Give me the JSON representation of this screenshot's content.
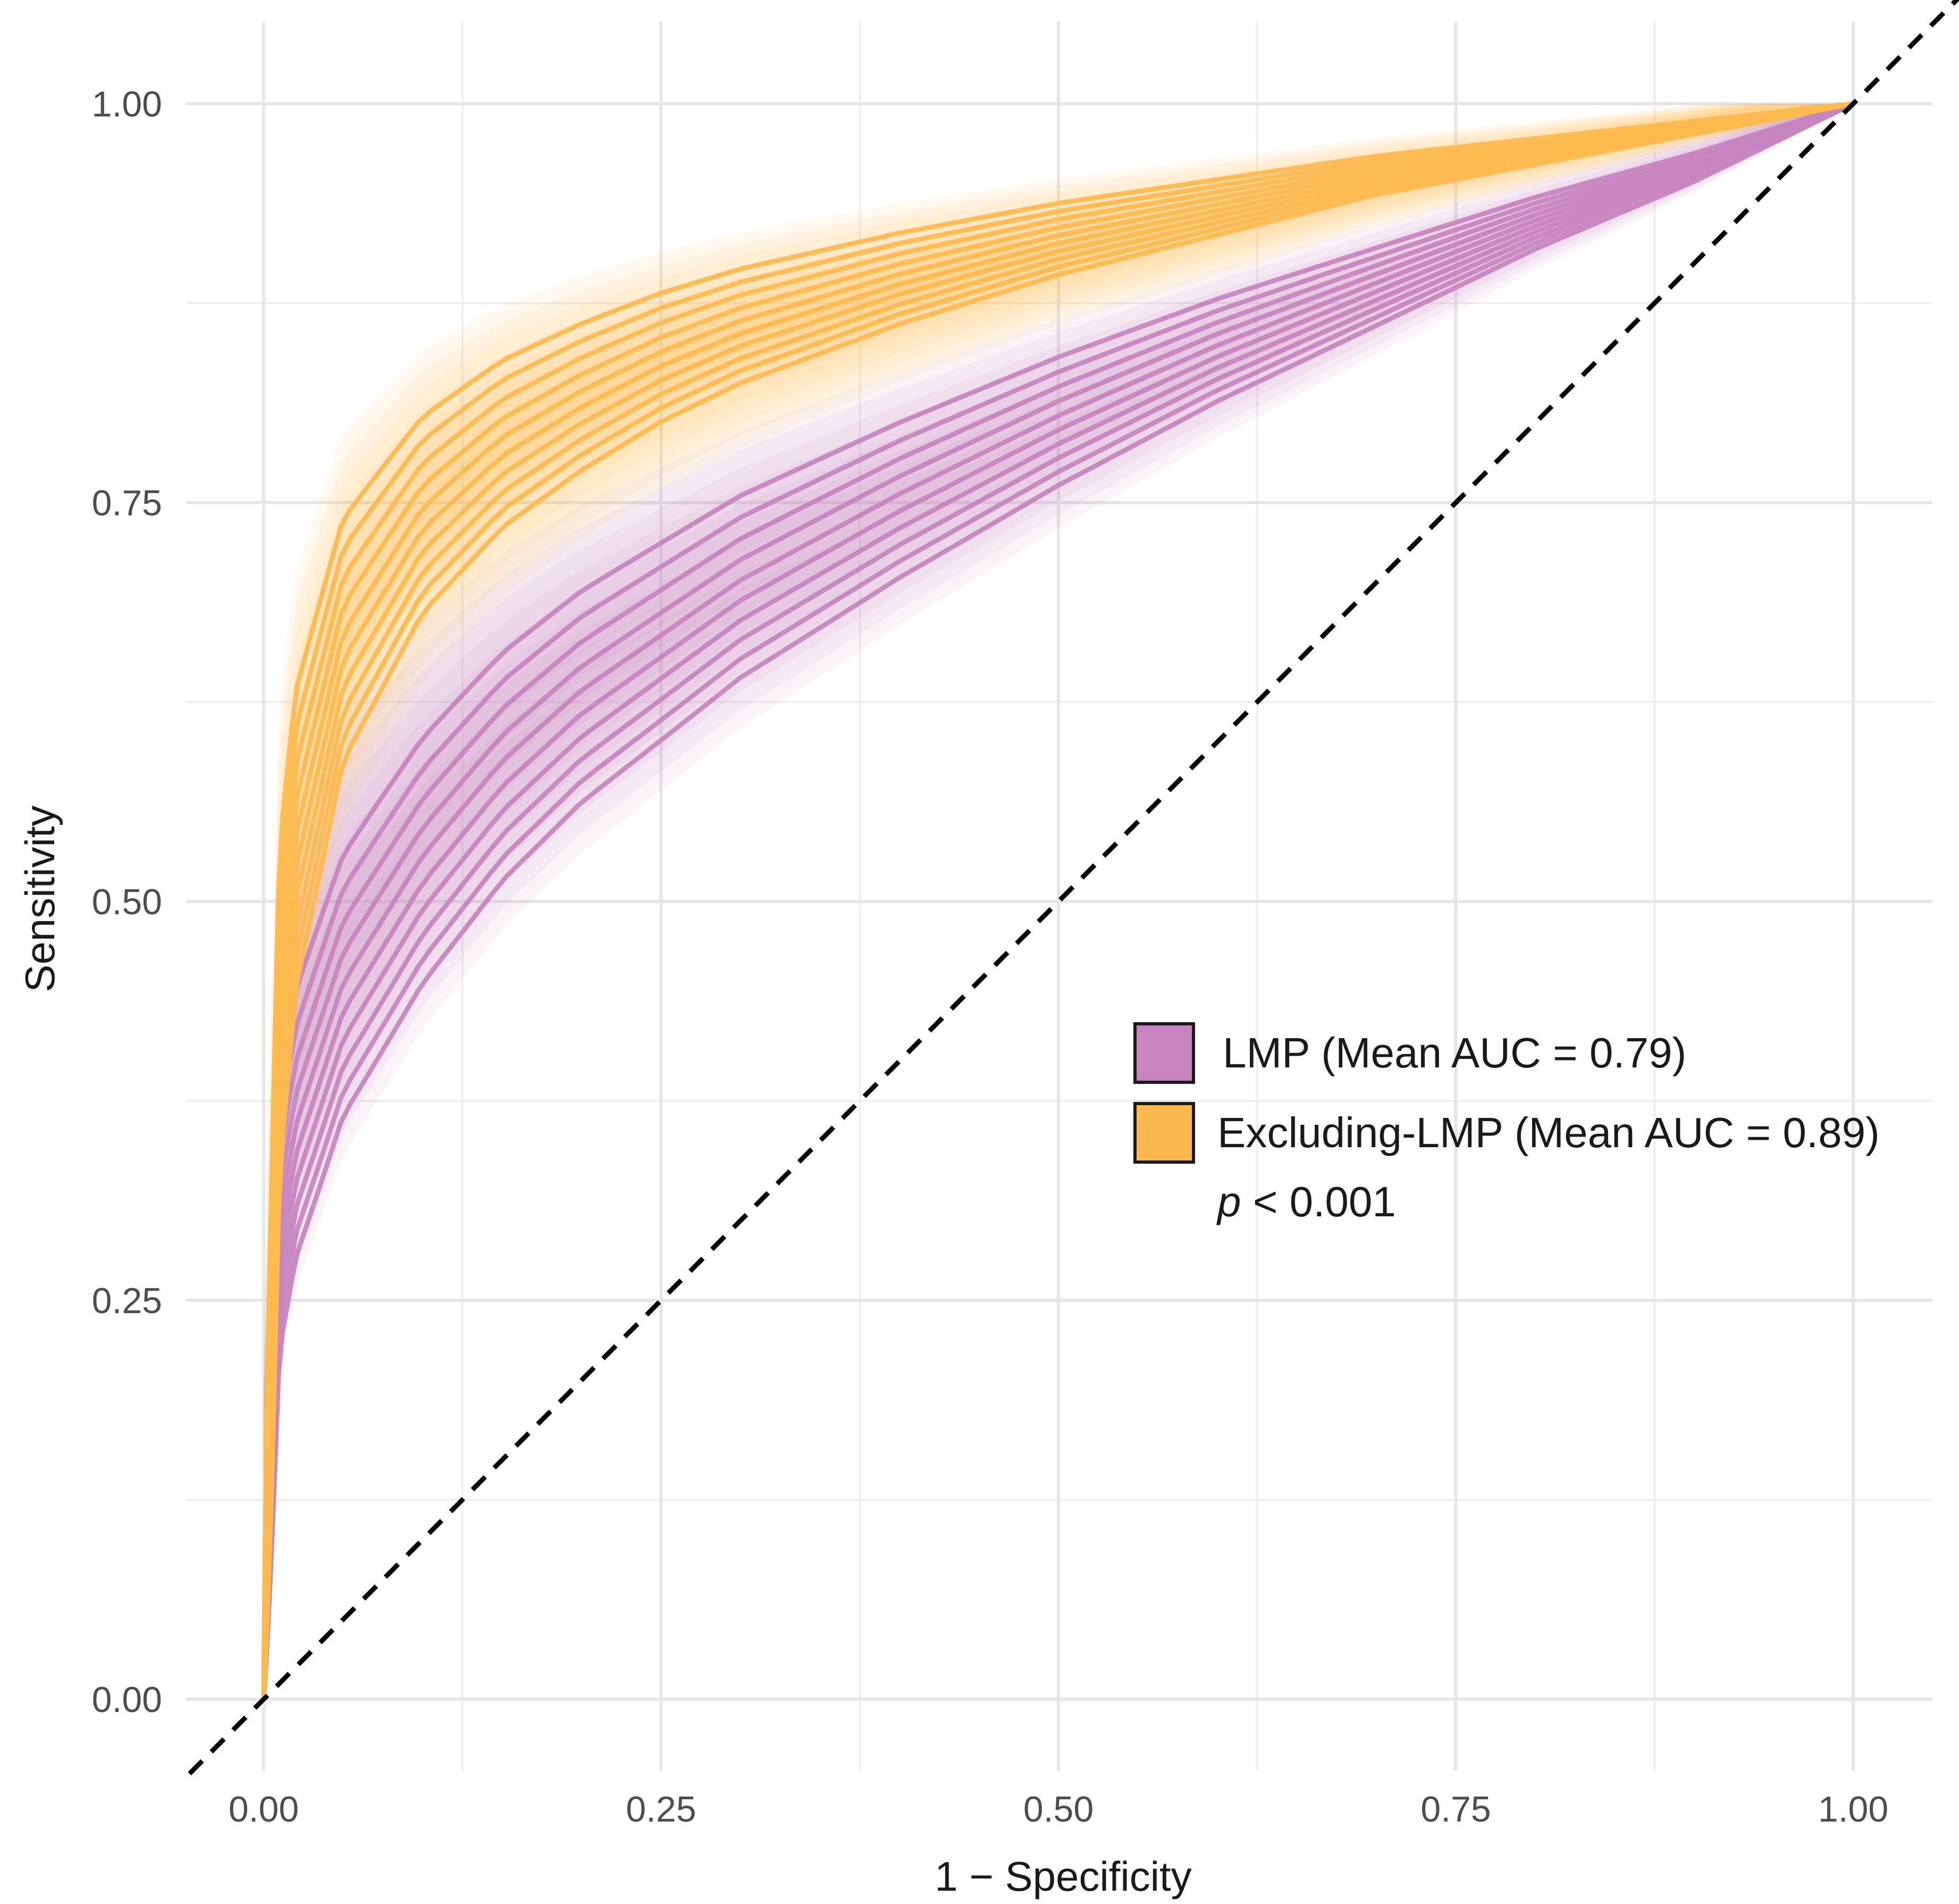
{
  "chart_data": {
    "type": "line",
    "title": "",
    "xlabel": "1 − Specificity",
    "ylabel": "Sensitivity",
    "xlim": [
      0,
      1
    ],
    "ylim": [
      0,
      1
    ],
    "x_ticks": [
      0,
      0.25,
      0.5,
      0.75,
      1
    ],
    "x_tick_labels": [
      "0.00",
      "0.25",
      "0.50",
      "0.75",
      "1.00"
    ],
    "y_ticks": [
      0,
      0.25,
      0.5,
      0.75,
      1
    ],
    "y_tick_labels": [
      "0.00",
      "0.25",
      "0.50",
      "0.75",
      "1.00"
    ],
    "grid": true,
    "reference_line": {
      "style": "dashed",
      "from": [
        0,
        0
      ],
      "to": [
        1,
        1
      ],
      "color": "#000000"
    },
    "legend_position": "center-right",
    "series": [
      {
        "name": "LMP (Mean AUC = 0.79)",
        "color": "#c785bf",
        "mean_auc": 0.79,
        "n_curves": 10,
        "band": "shaded confidence band",
        "x": [
          0,
          0.01,
          0.02,
          0.05,
          0.1,
          0.15,
          0.2,
          0.25,
          0.3,
          0.4,
          0.5,
          0.6,
          0.7,
          0.8,
          0.9,
          1.0
        ],
        "y": [
          0,
          0.29,
          0.35,
          0.44,
          0.52,
          0.58,
          0.625,
          0.66,
          0.695,
          0.75,
          0.8,
          0.845,
          0.885,
          0.925,
          0.96,
          1.0
        ]
      },
      {
        "name": "Excluding-LMP (Mean AUC = 0.89)",
        "color": "#fdb94f",
        "mean_auc": 0.89,
        "n_curves": 10,
        "band": "shaded confidence band",
        "x": [
          0,
          0.01,
          0.02,
          0.05,
          0.1,
          0.15,
          0.2,
          0.25,
          0.3,
          0.4,
          0.5,
          0.6,
          0.7,
          0.8,
          0.9,
          1.0
        ],
        "y": [
          0,
          0.42,
          0.53,
          0.66,
          0.74,
          0.785,
          0.815,
          0.84,
          0.86,
          0.89,
          0.915,
          0.935,
          0.955,
          0.97,
          0.985,
          1.0
        ]
      }
    ],
    "annotation": {
      "p_symbol": "p",
      "p_rest": " < 0.001"
    }
  },
  "legend": {
    "items": [
      {
        "label": "LMP (Mean AUC = 0.79)",
        "color": "#c785bf"
      },
      {
        "label": "Excluding-LMP (Mean AUC = 0.89)",
        "color": "#fdb94f"
      }
    ]
  }
}
